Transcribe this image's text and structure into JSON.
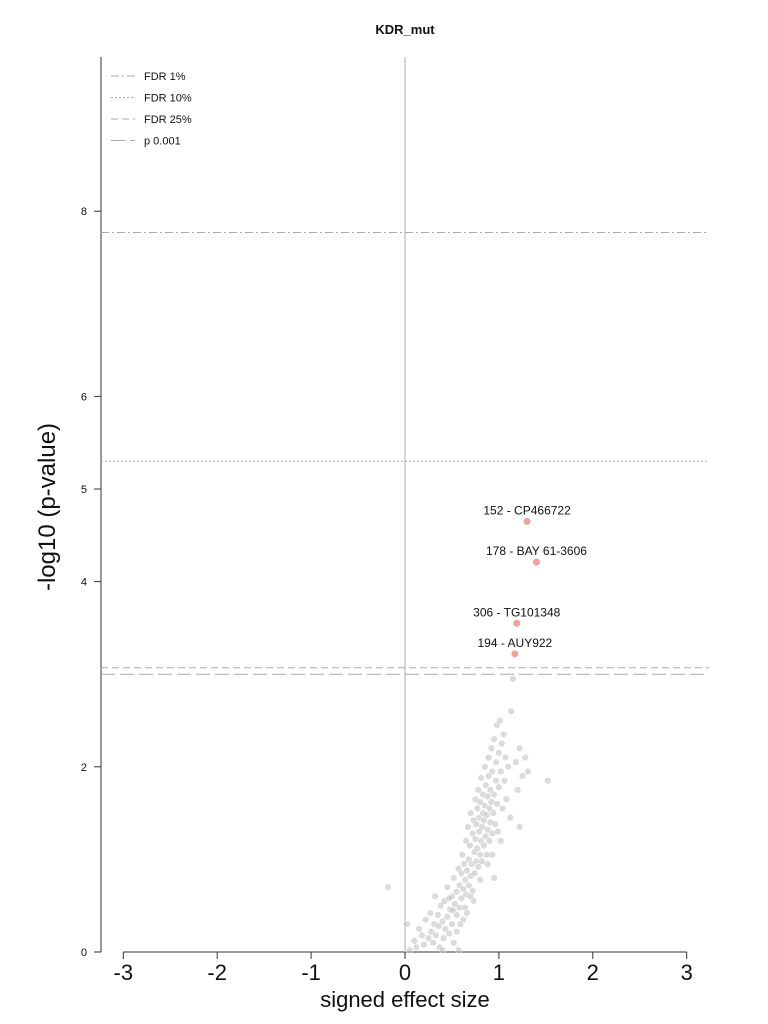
{
  "chart_data": {
    "type": "scatter",
    "title": "KDR_mut",
    "xlabel": "signed effect size",
    "ylabel": "-log10 (p-value)",
    "xlim": [
      -3.2,
      3.2
    ],
    "ylim": [
      0,
      9.7
    ],
    "xticks": [
      -3,
      -2,
      -1,
      0,
      1,
      2,
      3
    ],
    "yticks": [
      0,
      2,
      4,
      5,
      6,
      8
    ],
    "legend_position": "top-left",
    "grid": false,
    "thresholds": [
      {
        "label": "FDR 1%",
        "y": 7.77,
        "style": "dash-dot",
        "color": "#a8a8a8"
      },
      {
        "label": "FDR 10%",
        "y": 5.3,
        "style": "dotted",
        "color": "#a8a8a8"
      },
      {
        "label": "FDR 25%",
        "y": 3.07,
        "style": "dashed",
        "color": "#a8a8a8"
      },
      {
        "label": "p 0.001",
        "y": 3.0,
        "style": "long-dash",
        "color": "#a8a8a8"
      }
    ],
    "highlighted_points": [
      {
        "label": "152 - CP466722",
        "x": 1.3,
        "y": 4.65
      },
      {
        "label": "178 - BAY 61-3606",
        "x": 1.4,
        "y": 4.21
      },
      {
        "label": "306 - TG101348",
        "x": 1.19,
        "y": 3.55
      },
      {
        "label": "194 - AUY922",
        "x": 1.17,
        "y": 3.22
      }
    ],
    "highlight_color": "#f4a09a",
    "point_color": "#bdbdbd",
    "points": [
      [
        -0.18,
        0.7
      ],
      [
        0.05,
        0.02
      ],
      [
        0.02,
        0.3
      ],
      [
        0.1,
        0.12
      ],
      [
        0.12,
        0.05
      ],
      [
        0.15,
        0.25
      ],
      [
        0.18,
        0.18
      ],
      [
        0.2,
        0.08
      ],
      [
        0.22,
        0.35
      ],
      [
        0.25,
        0.15
      ],
      [
        0.27,
        0.42
      ],
      [
        0.28,
        0.22
      ],
      [
        0.3,
        0.1
      ],
      [
        0.31,
        0.3
      ],
      [
        0.32,
        0.6
      ],
      [
        0.33,
        0.18
      ],
      [
        0.35,
        0.4
      ],
      [
        0.36,
        0.28
      ],
      [
        0.37,
        0.05
      ],
      [
        0.38,
        0.5
      ],
      [
        0.4,
        0.33
      ],
      [
        0.41,
        0.15
      ],
      [
        0.42,
        0.55
      ],
      [
        0.43,
        0.25
      ],
      [
        0.45,
        0.7
      ],
      [
        0.45,
        0.38
      ],
      [
        0.47,
        0.2
      ],
      [
        0.48,
        0.46
      ],
      [
        0.5,
        0.6
      ],
      [
        0.5,
        0.3
      ],
      [
        0.52,
        0.8
      ],
      [
        0.52,
        0.1
      ],
      [
        0.53,
        0.52
      ],
      [
        0.55,
        0.65
      ],
      [
        0.55,
        0.4
      ],
      [
        0.57,
        0.9
      ],
      [
        0.58,
        0.72
      ],
      [
        0.58,
        0.48
      ],
      [
        0.6,
        0.85
      ],
      [
        0.6,
        0.58
      ],
      [
        0.61,
        1.05
      ],
      [
        0.62,
        0.68
      ],
      [
        0.62,
        0.35
      ],
      [
        0.63,
        0.95
      ],
      [
        0.64,
        0.78
      ],
      [
        0.65,
        1.2
      ],
      [
        0.65,
        0.62
      ],
      [
        0.66,
        0.88
      ],
      [
        0.67,
        1.35
      ],
      [
        0.68,
        1.0
      ],
      [
        0.68,
        0.72
      ],
      [
        0.69,
        1.15
      ],
      [
        0.7,
        0.82
      ],
      [
        0.7,
        1.5
      ],
      [
        0.71,
        0.95
      ],
      [
        0.72,
        1.28
      ],
      [
        0.72,
        0.66
      ],
      [
        0.73,
        1.42
      ],
      [
        0.74,
        1.08
      ],
      [
        0.74,
        0.85
      ],
      [
        0.75,
        1.65
      ],
      [
        0.75,
        1.22
      ],
      [
        0.76,
        0.98
      ],
      [
        0.76,
        1.38
      ],
      [
        0.77,
        1.55
      ],
      [
        0.77,
        1.12
      ],
      [
        0.78,
        0.92
      ],
      [
        0.78,
        1.75
      ],
      [
        0.79,
        1.3
      ],
      [
        0.79,
        1.45
      ],
      [
        0.8,
        1.05
      ],
      [
        0.8,
        1.62
      ],
      [
        0.81,
        1.2
      ],
      [
        0.81,
        1.88
      ],
      [
        0.82,
        1.35
      ],
      [
        0.82,
        0.98
      ],
      [
        0.83,
        1.5
      ],
      [
        0.83,
        1.7
      ],
      [
        0.84,
        1.15
      ],
      [
        0.84,
        1.42
      ],
      [
        0.85,
        2.0
      ],
      [
        0.85,
        1.58
      ],
      [
        0.86,
        1.25
      ],
      [
        0.86,
        1.8
      ],
      [
        0.87,
        1.48
      ],
      [
        0.87,
        1.05
      ],
      [
        0.88,
        1.68
      ],
      [
        0.88,
        1.32
      ],
      [
        0.89,
        2.1
      ],
      [
        0.89,
        1.9
      ],
      [
        0.9,
        1.55
      ],
      [
        0.9,
        1.2
      ],
      [
        0.91,
        1.75
      ],
      [
        0.91,
        1.4
      ],
      [
        0.92,
        2.2
      ],
      [
        0.92,
        1.62
      ],
      [
        0.93,
        1.28
      ],
      [
        0.93,
        1.95
      ],
      [
        0.94,
        1.5
      ],
      [
        0.95,
        2.3
      ],
      [
        0.95,
        1.7
      ],
      [
        0.96,
        1.38
      ],
      [
        0.97,
        2.05
      ],
      [
        0.97,
        1.85
      ],
      [
        0.98,
        2.45
      ],
      [
        0.98,
        1.6
      ],
      [
        0.99,
        1.3
      ],
      [
        1.0,
        2.15
      ],
      [
        1.0,
        1.78
      ],
      [
        1.01,
        2.5
      ],
      [
        1.02,
        1.95
      ],
      [
        1.03,
        2.25
      ],
      [
        1.04,
        1.55
      ],
      [
        1.05,
        2.35
      ],
      [
        1.06,
        1.85
      ],
      [
        1.07,
        2.1
      ],
      [
        1.08,
        1.65
      ],
      [
        1.1,
        2.0
      ],
      [
        1.12,
        1.45
      ],
      [
        1.13,
        2.6
      ],
      [
        0.7,
        0.6
      ],
      [
        0.64,
        0.48
      ],
      [
        0.55,
        0.22
      ],
      [
        0.47,
        0.58
      ],
      [
        0.88,
        0.95
      ],
      [
        0.93,
        1.05
      ],
      [
        0.95,
        0.8
      ],
      [
        1.02,
        1.2
      ],
      [
        1.15,
        2.95
      ],
      [
        1.18,
        2.05
      ],
      [
        1.2,
        1.75
      ],
      [
        1.22,
        1.35
      ],
      [
        1.25,
        1.9
      ],
      [
        1.28,
        2.1
      ],
      [
        1.31,
        1.95
      ],
      [
        1.22,
        2.2
      ],
      [
        1.52,
        1.85
      ],
      [
        0.57,
        0.02
      ],
      [
        0.4,
        0.02
      ],
      [
        0.8,
        0.78
      ],
      [
        0.73,
        0.55
      ],
      [
        0.66,
        0.42
      ],
      [
        0.59,
        0.3
      ],
      [
        0.51,
        0.45
      ]
    ]
  }
}
